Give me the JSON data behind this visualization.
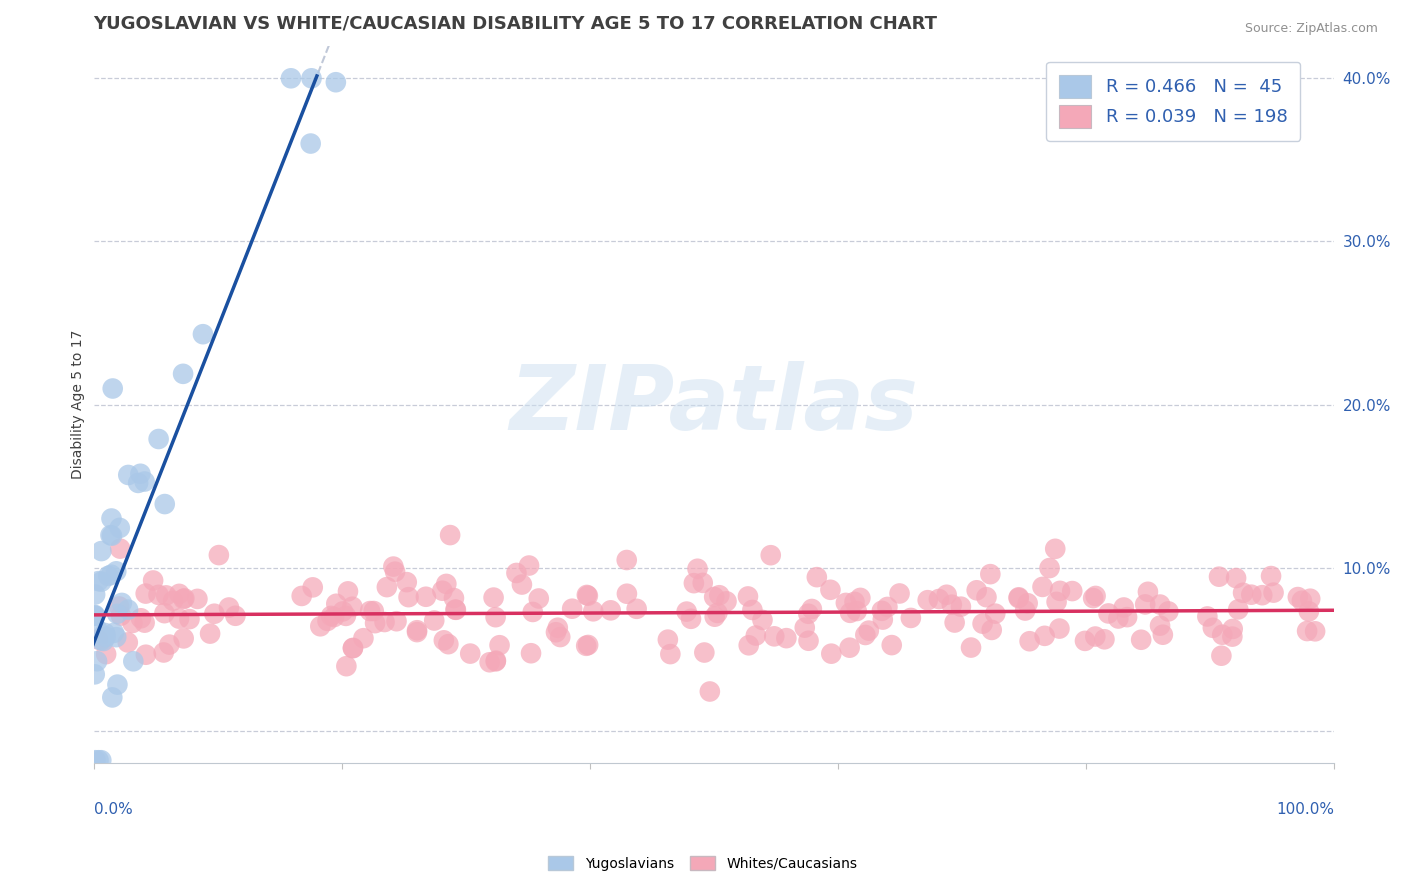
{
  "title": "YUGOSLAVIAN VS WHITE/CAUCASIAN DISABILITY AGE 5 TO 17 CORRELATION CHART",
  "source_text": "Source: ZipAtlas.com",
  "ylabel": "Disability Age 5 to 17",
  "watermark": "ZIPatlas",
  "blue_R": 0.466,
  "blue_N": 45,
  "pink_R": 0.039,
  "pink_N": 198,
  "blue_fill": "#aac8e8",
  "blue_line": "#1a50a0",
  "pink_fill": "#f4a8b8",
  "pink_line": "#d83060",
  "dashed_color": "#c0c8d8",
  "grid_color": "#c8ccd8",
  "bg_color": "#ffffff",
  "axis_text_color": "#3060b0",
  "title_color": "#404040",
  "label_color": "#404040",
  "xlim": [
    0.0,
    1.0
  ],
  "ylim": [
    -0.02,
    0.42
  ],
  "yticks": [
    0.0,
    0.1,
    0.2,
    0.3,
    0.4
  ],
  "ytick_labels": [
    "",
    "10.0%",
    "20.0%",
    "30.0%",
    "40.0%"
  ],
  "title_fontsize": 13,
  "legend_fontsize": 13,
  "tick_fontsize": 11,
  "marker_size": 220
}
